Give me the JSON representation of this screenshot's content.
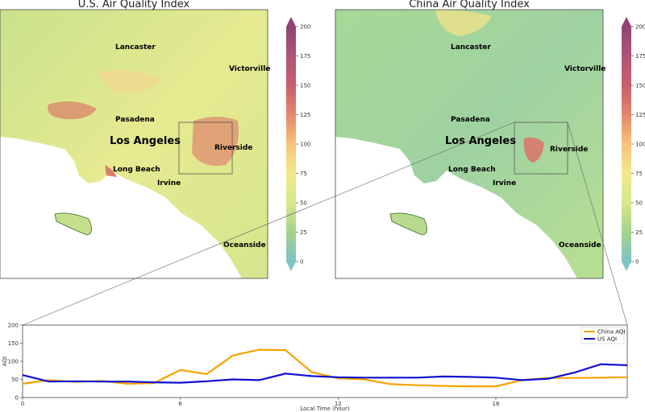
{
  "maps": [
    {
      "title": "U.S. Air Quality Index",
      "cities": [
        {
          "name": "Lancaster",
          "cls": "city"
        },
        {
          "name": "Victorville",
          "cls": "city"
        },
        {
          "name": "Pasadena",
          "cls": "city"
        },
        {
          "name": "Los Angeles",
          "cls": "city-big"
        },
        {
          "name": "Riverside",
          "cls": "city"
        },
        {
          "name": "Long Beach",
          "cls": "city"
        },
        {
          "name": "Irvine",
          "cls": "city"
        },
        {
          "name": "Oceanside",
          "cls": "city"
        }
      ],
      "colorbar": {
        "ticks": [
          "0",
          "25",
          "50",
          "75",
          "100",
          "125",
          "150",
          "175",
          "200"
        ]
      }
    },
    {
      "title": "China Air Quality Index",
      "cities": [
        {
          "name": "Lancaster",
          "cls": "city"
        },
        {
          "name": "Victorville",
          "cls": "city"
        },
        {
          "name": "Pasadena",
          "cls": "city"
        },
        {
          "name": "Los Angeles",
          "cls": "city-big"
        },
        {
          "name": "Riverside",
          "cls": "city"
        },
        {
          "name": "Long Beach",
          "cls": "city"
        },
        {
          "name": "Irvine",
          "cls": "city"
        },
        {
          "name": "Oceanside",
          "cls": "city"
        }
      ],
      "colorbar": {
        "ticks": [
          "0",
          "25",
          "50",
          "75",
          "100",
          "125",
          "150",
          "175",
          "200"
        ]
      }
    }
  ],
  "colorbar_colors": [
    "#7fc3c8",
    "#a3d38a",
    "#d8e88c",
    "#f3e98b",
    "#f4c47a",
    "#e4876b",
    "#c95e6b",
    "#b05377",
    "#8e4574"
  ],
  "chart_data": {
    "type": "line",
    "xlabel": "Local Time (hour)",
    "ylabel": "AQI",
    "xlim": [
      0,
      23
    ],
    "ylim": [
      0,
      200
    ],
    "xticks": [
      0,
      6,
      12,
      18
    ],
    "yticks": [
      0,
      50,
      100,
      150,
      200
    ],
    "legend_position": "top-right",
    "x": [
      0,
      1,
      2,
      3,
      4,
      5,
      6,
      7,
      8,
      9,
      10,
      11,
      12,
      13,
      14,
      15,
      16,
      17,
      18,
      19,
      20,
      21,
      22,
      23
    ],
    "series": [
      {
        "name": "China AQI",
        "color": "#f5a300",
        "values": [
          38,
          48,
          43,
          46,
          38,
          40,
          76,
          65,
          116,
          132,
          131,
          70,
          53,
          50,
          37,
          34,
          32,
          31,
          31,
          48,
          54,
          54,
          55,
          56
        ]
      },
      {
        "name": "US AQI",
        "color": "#1010d0",
        "values": [
          62,
          44,
          45,
          44,
          44,
          42,
          41,
          45,
          50,
          48,
          66,
          59,
          56,
          55,
          55,
          55,
          58,
          57,
          55,
          48,
          52,
          69,
          92,
          89
        ]
      }
    ]
  }
}
